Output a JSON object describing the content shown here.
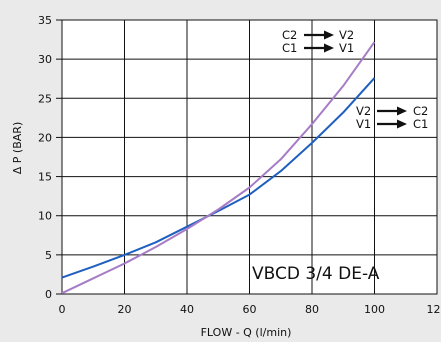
{
  "chart_data": {
    "type": "line",
    "title": "",
    "xlabel": "FLOW - Q (l/min)",
    "ylabel": "Δ P (BAR)",
    "xlim": [
      0,
      120
    ],
    "ylim": [
      0,
      35
    ],
    "xticks": [
      "0",
      "20",
      "40",
      "60",
      "80",
      "100",
      "120"
    ],
    "yticks": [
      "0",
      "5",
      "10",
      "15",
      "20",
      "25",
      "30",
      "35"
    ],
    "grid": true,
    "series": [
      {
        "color": "#1f5fbf",
        "x": [
          0,
          10,
          20,
          30,
          40,
          50,
          60,
          70,
          80,
          90,
          100
        ],
        "y": [
          2.1,
          3.5,
          5.0,
          6.6,
          8.6,
          10.6,
          12.7,
          15.7,
          19.3,
          23.2,
          27.6
        ]
      },
      {
        "color": "#a67cc6",
        "x": [
          0,
          10,
          20,
          30,
          40,
          50,
          60,
          70,
          80,
          90,
          100
        ],
        "y": [
          0.1,
          2.0,
          3.9,
          6.0,
          8.3,
          10.8,
          13.6,
          17.2,
          21.7,
          26.6,
          32.2
        ]
      }
    ],
    "annotations": {
      "top_line1": [
        "C2",
        "V2"
      ],
      "top_line2": [
        "C1",
        "V1"
      ],
      "right_line1": [
        "V2",
        "C2"
      ],
      "right_line2": [
        "V1",
        "C1"
      ],
      "model": "VBCD 3/4 DE-A"
    }
  }
}
